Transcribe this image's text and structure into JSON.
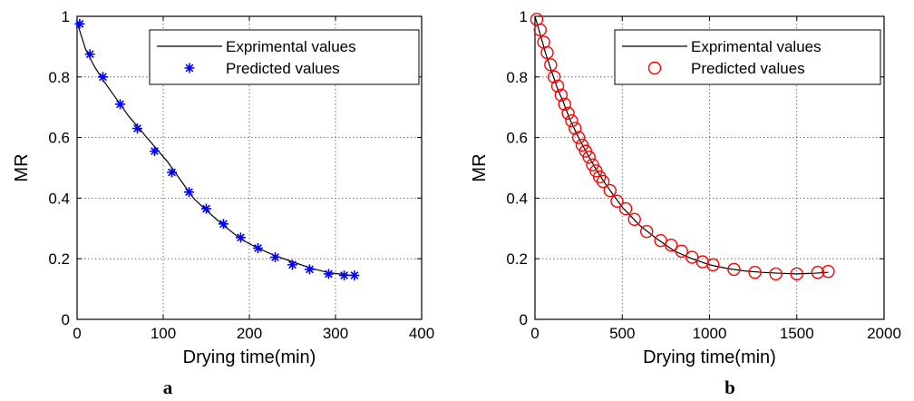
{
  "chart_data": [
    {
      "type": "line",
      "panel_label": "a",
      "xlabel": "Drying time(min)",
      "ylabel": "MR",
      "xlim": [
        0,
        400
      ],
      "ylim": [
        0,
        1
      ],
      "xticks": [
        0,
        100,
        200,
        300,
        400
      ],
      "yticks": [
        0,
        0.2,
        0.4,
        0.6,
        0.8,
        1
      ],
      "grid": true,
      "legend_position": "top-right",
      "series": [
        {
          "name": "Exprimental values",
          "style": "solid-line",
          "color": "#000000",
          "x": [
            0,
            10,
            20,
            30,
            45,
            60,
            75,
            90,
            105,
            120,
            135,
            150,
            170,
            190,
            210,
            230,
            250,
            270,
            290,
            310,
            320
          ],
          "y": [
            0.98,
            0.89,
            0.835,
            0.79,
            0.73,
            0.67,
            0.62,
            0.57,
            0.52,
            0.46,
            0.4,
            0.36,
            0.31,
            0.265,
            0.235,
            0.21,
            0.19,
            0.17,
            0.155,
            0.148,
            0.145
          ]
        },
        {
          "name": "Predicted values",
          "style": "asterisk-marker",
          "color": "#0000ff",
          "x": [
            3,
            15,
            30,
            50,
            70,
            90,
            110,
            130,
            150,
            170,
            190,
            210,
            230,
            250,
            270,
            292,
            310,
            322
          ],
          "y": [
            0.975,
            0.875,
            0.8,
            0.71,
            0.63,
            0.555,
            0.485,
            0.42,
            0.365,
            0.315,
            0.27,
            0.235,
            0.205,
            0.18,
            0.165,
            0.15,
            0.145,
            0.145
          ]
        }
      ]
    },
    {
      "type": "line",
      "panel_label": "b",
      "xlabel": "Drying time(min)",
      "ylabel": "MR",
      "xlim": [
        0,
        2000
      ],
      "ylim": [
        0,
        1
      ],
      "xticks": [
        0,
        500,
        1000,
        1500,
        2000
      ],
      "yticks": [
        0,
        0.2,
        0.4,
        0.6,
        0.8,
        1
      ],
      "grid": true,
      "legend_position": "top-right",
      "series": [
        {
          "name": "Exprimental values",
          "style": "solid-line",
          "color": "#000000",
          "x": [
            0,
            20,
            40,
            60,
            80,
            100,
            130,
            160,
            200,
            250,
            300,
            350,
            400,
            450,
            500,
            550,
            600,
            700,
            800,
            900,
            1000,
            1100,
            1200,
            1300,
            1400,
            1500,
            1600,
            1680
          ],
          "y": [
            1.0,
            0.96,
            0.92,
            0.88,
            0.845,
            0.81,
            0.76,
            0.72,
            0.66,
            0.6,
            0.545,
            0.495,
            0.45,
            0.41,
            0.37,
            0.34,
            0.31,
            0.265,
            0.225,
            0.2,
            0.18,
            0.168,
            0.16,
            0.155,
            0.152,
            0.15,
            0.152,
            0.155
          ]
        },
        {
          "name": "Predicted values",
          "style": "circle-marker",
          "color": "#ff0000",
          "x": [
            10,
            30,
            50,
            70,
            90,
            110,
            130,
            150,
            170,
            190,
            210,
            230,
            250,
            270,
            290,
            310,
            330,
            350,
            370,
            390,
            430,
            470,
            520,
            570,
            640,
            720,
            780,
            840,
            900,
            960,
            1020,
            1140,
            1260,
            1380,
            1500,
            1620,
            1680
          ],
          "y": [
            0.99,
            0.955,
            0.915,
            0.88,
            0.84,
            0.8,
            0.77,
            0.74,
            0.71,
            0.68,
            0.655,
            0.63,
            0.6,
            0.575,
            0.555,
            0.535,
            0.51,
            0.49,
            0.47,
            0.455,
            0.425,
            0.39,
            0.365,
            0.33,
            0.29,
            0.26,
            0.245,
            0.225,
            0.205,
            0.19,
            0.18,
            0.165,
            0.155,
            0.15,
            0.15,
            0.155,
            0.158
          ]
        }
      ]
    }
  ]
}
